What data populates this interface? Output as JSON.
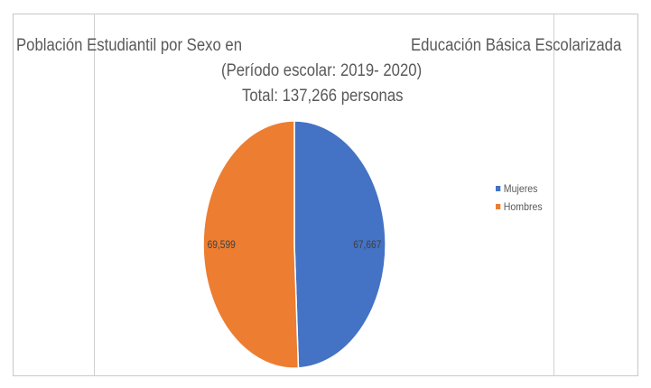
{
  "chart_data": {
    "type": "pie",
    "title_line1_left": "Población Estudiantil por Sexo en",
    "title_line1_right": "Educación Básica Escolarizada",
    "title_line2": "(Período escolar: 2019- 2020)",
    "title_line3": "Total: 137,266 personas",
    "categories": [
      "Mujeres",
      "Hombres"
    ],
    "values": [
      67667,
      69599
    ],
    "data_labels": [
      "67,667",
      "69,599"
    ],
    "colors": [
      "#4472C4",
      "#ED7D31"
    ],
    "legend_position": "right"
  }
}
